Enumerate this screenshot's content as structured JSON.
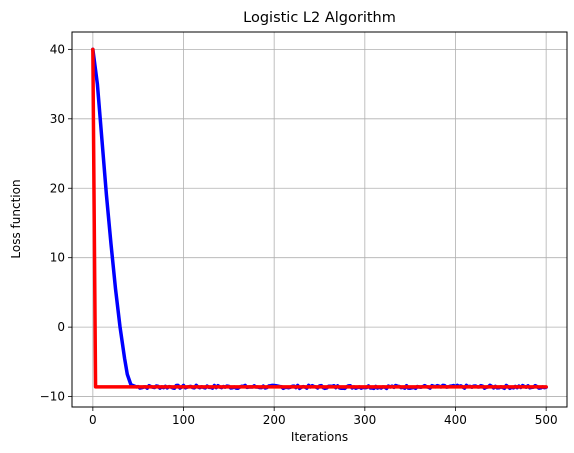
{
  "chart_data": {
    "type": "line",
    "title": "Logistic L2 Algorithm",
    "xlabel": "Iterations",
    "ylabel": "Loss function",
    "xlim": [
      -23,
      523
    ],
    "ylim": [
      -11.5,
      42.5
    ],
    "xticks": [
      0,
      100,
      200,
      300,
      400,
      500
    ],
    "yticks": [
      -10,
      0,
      10,
      20,
      30,
      40
    ],
    "xtick_labels": [
      "0",
      "100",
      "200",
      "300",
      "400",
      "500"
    ],
    "ytick_labels": [
      "−10",
      "0",
      "10",
      "20",
      "30",
      "40"
    ],
    "grid": true,
    "legend": "none",
    "series": [
      {
        "color": "#0000ff",
        "points": [
          [
            0,
            40
          ],
          [
            5,
            35
          ],
          [
            10,
            27
          ],
          [
            15,
            19
          ],
          [
            20,
            12
          ],
          [
            25,
            5.5
          ],
          [
            30,
            0
          ],
          [
            35,
            -4.5
          ],
          [
            38,
            -6.8
          ],
          [
            42,
            -8.3
          ],
          [
            48,
            -8.6
          ],
          [
            500,
            -8.6
          ]
        ],
        "noise": true
      },
      {
        "color": "#ff0000",
        "points": [
          [
            0,
            40
          ],
          [
            3,
            -8.6
          ],
          [
            500,
            -8.6
          ]
        ],
        "noise": false
      }
    ]
  }
}
